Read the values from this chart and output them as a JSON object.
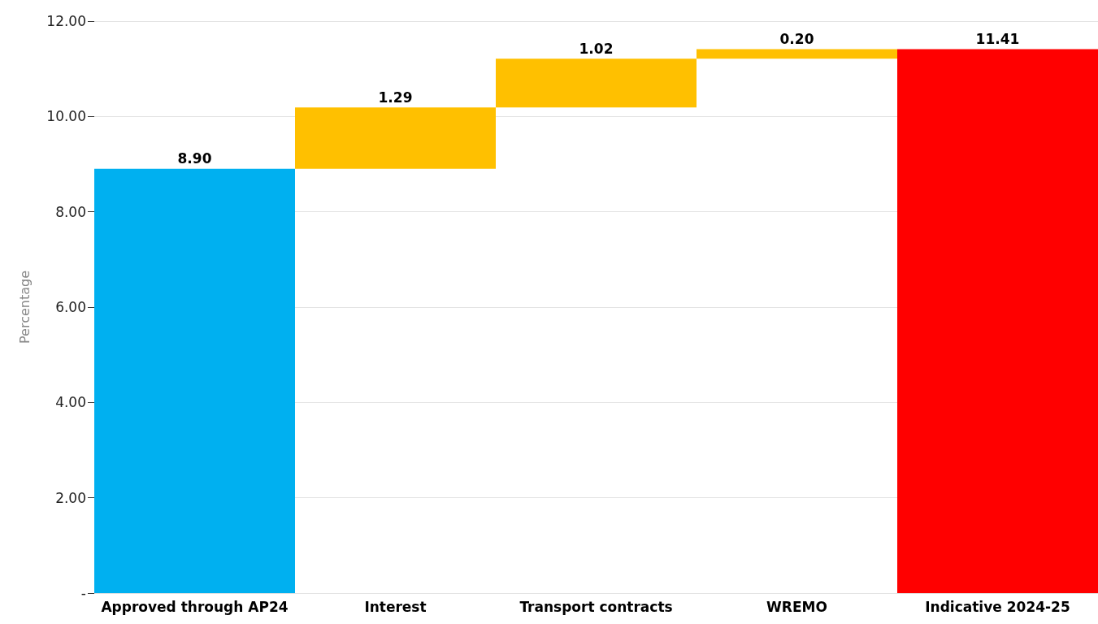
{
  "chart_data": {
    "type": "bar",
    "ylabel": "Percentage",
    "categories": [
      "Approved through AP24",
      "Interest",
      "Transport contracts",
      "WREMO",
      "Indicative 2024-25"
    ],
    "values": [
      8.9,
      1.29,
      1.02,
      0.2,
      11.41
    ],
    "base": [
      0,
      8.9,
      10.19,
      11.21,
      0
    ],
    "colors": [
      "#00b0f0",
      "#ffc000",
      "#ffc000",
      "#ffc000",
      "#ff0000"
    ],
    "value_labels": [
      "8.90",
      "1.29",
      "1.02",
      "0.20",
      "11.41"
    ],
    "ylim": [
      0,
      12
    ],
    "yticks": [
      {
        "value": 0,
        "label": "-"
      },
      {
        "value": 2,
        "label": "2.00"
      },
      {
        "value": 4,
        "label": "4.00"
      },
      {
        "value": 6,
        "label": "6.00"
      },
      {
        "value": 8,
        "label": "8.00"
      },
      {
        "value": 10,
        "label": "10.00"
      },
      {
        "value": 12,
        "label": "12.00"
      }
    ],
    "grid": "y"
  }
}
